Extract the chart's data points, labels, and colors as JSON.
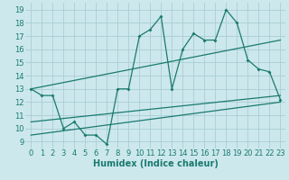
{
  "xlabel": "Humidex (Indice chaleur)",
  "bg_color": "#cce8ed",
  "line_color": "#1a7a6e",
  "grid_color": "#aacdd4",
  "xlim": [
    -0.5,
    23.5
  ],
  "ylim": [
    8.5,
    19.5
  ],
  "xticks": [
    0,
    1,
    2,
    3,
    4,
    5,
    6,
    7,
    8,
    9,
    10,
    11,
    12,
    13,
    14,
    15,
    16,
    17,
    18,
    19,
    20,
    21,
    22,
    23
  ],
  "yticks": [
    9,
    10,
    11,
    12,
    13,
    14,
    15,
    16,
    17,
    18,
    19
  ],
  "line1_x": [
    0,
    1,
    2,
    3,
    4,
    5,
    6,
    7,
    8,
    9,
    10,
    11,
    12,
    13,
    14,
    15,
    16,
    17,
    18,
    19,
    20,
    21,
    22,
    23
  ],
  "line1_y": [
    13,
    12.5,
    12.5,
    10,
    10.5,
    9.5,
    9.5,
    8.8,
    13,
    13,
    17,
    17.5,
    18.5,
    13,
    16,
    17.2,
    16.7,
    16.7,
    19,
    18,
    15.2,
    14.5,
    14.3,
    12.2
  ],
  "line2_x": [
    0,
    23
  ],
  "line2_y": [
    13.0,
    16.7
  ],
  "line3_x": [
    0,
    23
  ],
  "line3_y": [
    10.5,
    12.5
  ],
  "line4_x": [
    0,
    23
  ],
  "line4_y": [
    9.5,
    12.0
  ],
  "tick_fontsize": 6,
  "xlabel_fontsize": 7
}
